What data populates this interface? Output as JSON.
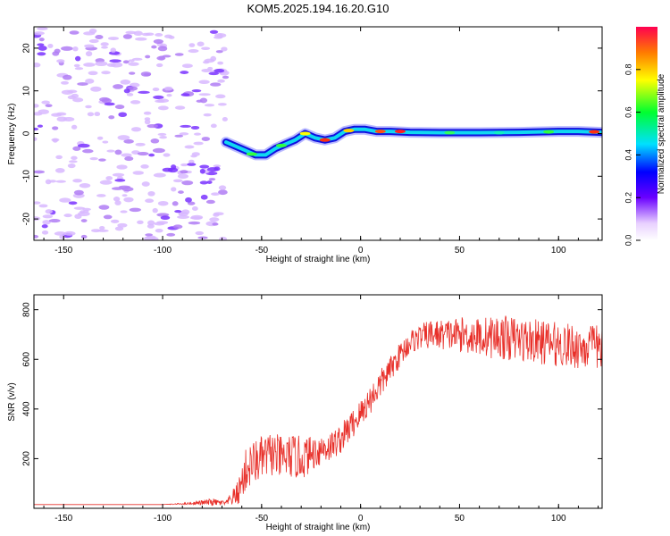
{
  "figure": {
    "title": "KOM5.2025.194.16.20.G10"
  },
  "colors": {
    "snr_line": "#e8302a",
    "frame": "#000000",
    "background": "#ffffff"
  },
  "chart_data": [
    {
      "type": "heatmap",
      "xlabel": "Height of straight line (km)",
      "ylabel": "Frequency (Hz)",
      "xlim": [
        -165,
        122
      ],
      "ylim": [
        -25,
        25
      ],
      "xticks": [
        -150,
        -100,
        -50,
        0,
        50,
        100
      ],
      "yticks": [
        -20,
        -10,
        0,
        10,
        20
      ],
      "colorbar": {
        "label": "Normalized spectral amplitude",
        "range": [
          0,
          1
        ],
        "ticks": [
          "0.0",
          "0.2",
          "0.4",
          "0.6",
          "0.8"
        ],
        "tick_values": [
          0,
          0.2,
          0.4,
          0.6,
          0.8
        ],
        "colormap": "rainbow (magenta-blue-cyan-green-yellow-red)"
      },
      "dominant_frequency_track": {
        "x": [
          -68,
          -63,
          -58,
          -53,
          -48,
          -43,
          -38,
          -33,
          -28,
          -23,
          -18,
          -13,
          -8,
          -3,
          2,
          8,
          15,
          25,
          40,
          60,
          80,
          100,
          110,
          122
        ],
        "y": [
          -2,
          -3,
          -4,
          -5,
          -5,
          -3.5,
          -2.5,
          -1.5,
          0,
          -1,
          -1.5,
          -1,
          0.5,
          1,
          1,
          0.5,
          0.5,
          0.3,
          0.2,
          0.2,
          0.3,
          0.5,
          0.5,
          0.3
        ]
      },
      "noise_region_x": [
        -165,
        -68
      ]
    },
    {
      "type": "line",
      "xlabel": "Height of straight line (km)",
      "ylabel": "SNR (v/v)",
      "xlim": [
        -165,
        122
      ],
      "ylim": [
        0,
        860
      ],
      "xticks": [
        -150,
        -100,
        -50,
        0,
        50,
        100
      ],
      "yticks": [
        200,
        400,
        600,
        800
      ],
      "series": [
        {
          "x": [
            -165,
            -140,
            -120,
            -100,
            -85,
            -75,
            -68,
            -62,
            -58,
            -55,
            -50,
            -45,
            -40,
            -35,
            -30,
            -25,
            -20,
            -15,
            -10,
            -5,
            0,
            5,
            10,
            15,
            20,
            25,
            30,
            35,
            40,
            50,
            60,
            70,
            80,
            90,
            100,
            110,
            122
          ],
          "y": [
            15,
            15,
            15,
            15,
            20,
            25,
            20,
            60,
            150,
            180,
            200,
            220,
            200,
            210,
            200,
            220,
            240,
            250,
            280,
            330,
            380,
            440,
            500,
            560,
            620,
            670,
            690,
            700,
            700,
            700,
            690,
            690,
            680,
            670,
            660,
            650,
            650
          ],
          "band": [
            0,
            0,
            0,
            0,
            5,
            15,
            10,
            50,
            90,
            90,
            90,
            90,
            90,
            90,
            90,
            70,
            70,
            60,
            60,
            60,
            60,
            60,
            60,
            50,
            50,
            50,
            50,
            60,
            60,
            70,
            80,
            90,
            90,
            90,
            90,
            90,
            90
          ]
        }
      ]
    }
  ]
}
